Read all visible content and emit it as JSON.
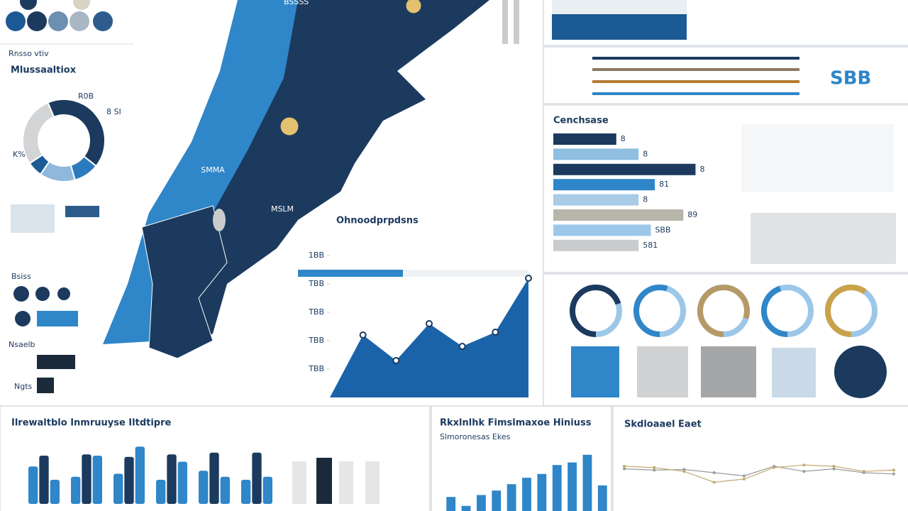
{
  "header": {
    "legend_title": "Rnsso vtiv",
    "title": "Mlussaaltiox"
  },
  "map_labels": [
    "BSSSS",
    "SMMA",
    "MSLM"
  ],
  "left_labels": [
    "Bsiss",
    "Nsaelb",
    "Ngts"
  ],
  "kpi": "SBB",
  "chart_data": [
    {
      "type": "pie",
      "values": [
        42,
        10,
        14,
        6,
        28
      ],
      "colors": [
        "#1b3a5e",
        "#2d7bbf",
        "#8fb8dc",
        "#1b5a94",
        "#d2d4d6"
      ],
      "annotations": [
        "R0B",
        "8 SI",
        "K%"
      ]
    },
    {
      "type": "area",
      "title": "Ohnoodprpdsns",
      "values": [
        0,
        44,
        26,
        52,
        36,
        46,
        84
      ],
      "color": "#1b63a8",
      "ylim": [
        0,
        100
      ],
      "yticks": [
        {
          "value": 100,
          "label": "1BB"
        },
        {
          "value": 80,
          "label": "TBB"
        },
        {
          "value": 60,
          "label": "TBB"
        },
        {
          "value": 40,
          "label": "TBB"
        },
        {
          "value": 20,
          "label": "TBB"
        }
      ]
    },
    {
      "type": "hbar",
      "title": "Cenchsase",
      "values": [
        93,
        126,
        210,
        150,
        126,
        192,
        144,
        126
      ],
      "xlim": [
        0,
        220
      ],
      "colors": [
        "#1b3a5e",
        "#8fbfe0",
        "#1b3a5e",
        "#2f86c8",
        "#a9cbe6",
        "#b8b6aa",
        "#9cc7e8",
        "#c9cbcc"
      ],
      "notes": [
        "8",
        "8",
        "8",
        "81",
        "8",
        "89",
        "SBB",
        "581"
      ]
    },
    {
      "type": "ring",
      "values": [
        70,
        55,
        80,
        45,
        60
      ],
      "ylim": [
        0,
        100
      ],
      "colors": [
        "#1b3a5e",
        "#2f86c8",
        "#b59a68",
        "#2f86c8",
        "#c9a24a"
      ]
    },
    {
      "type": "bar",
      "title": "Ilrewaltblo Inmruuyse Iltdtipre",
      "ylim": [
        0,
        100
      ],
      "series": [
        {
          "color": "#2f86c8",
          "values": [
            62,
            45,
            50,
            40,
            55,
            40
          ]
        },
        {
          "color": "#1b3a5e",
          "values": [
            80,
            82,
            78,
            82,
            85,
            85
          ]
        },
        {
          "color": "#2f86c8",
          "values": [
            40,
            80,
            95,
            70,
            45,
            45
          ]
        }
      ]
    },
    {
      "type": "vbar",
      "title": "Rkxlnlhk Fimslmaxoe Hiniuss",
      "subtitle": "Slmoronesas Ekes",
      "ylim": [
        0,
        100
      ],
      "color": "#2f86c8",
      "values": [
        22,
        8,
        25,
        32,
        42,
        52,
        58,
        72,
        76,
        88,
        40
      ]
    },
    {
      "type": "line",
      "title": "Skdloaael Eaet",
      "ylim": [
        0,
        100
      ],
      "series": [
        {
          "color": "#9a9a9a",
          "values": [
            66,
            64,
            65,
            60,
            55,
            70,
            62,
            66,
            60,
            58
          ]
        },
        {
          "color": "#c4a870",
          "values": [
            70,
            68,
            62,
            45,
            50,
            68,
            72,
            70,
            62,
            64
          ]
        }
      ]
    }
  ]
}
